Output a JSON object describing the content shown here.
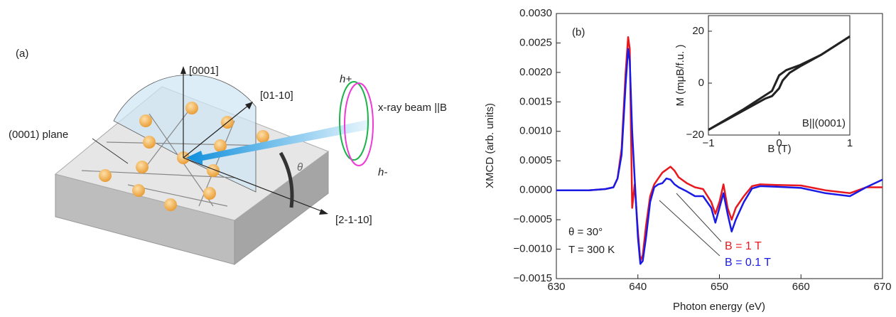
{
  "diagram": {
    "panel": "(a)",
    "axis_c": "[0001]",
    "axis_b": "[01-10]",
    "axis_a": "[2-1-10]",
    "plane": "(0001) plane",
    "beam": "x-ray beam ||B",
    "h_plus": "h+",
    "h_minus": "h-",
    "angle": "θ"
  },
  "chart_data": [
    {
      "type": "line",
      "panel": "(b)",
      "xlabel": "Photon energy (eV)",
      "ylabel": "XMCD (arb. units)",
      "annotations": [
        "θ = 30°",
        "T = 300 K"
      ],
      "x": [
        630,
        632,
        634,
        636,
        637,
        637.5,
        638,
        638.5,
        638.8,
        639,
        639.3,
        639.6,
        640,
        640.3,
        640.6,
        641,
        641.5,
        642,
        642.5,
        643,
        643.5,
        644,
        644.5,
        645,
        646,
        647,
        648,
        649,
        649.5,
        650,
        650.5,
        651,
        651.5,
        652,
        653,
        654,
        655,
        657,
        660,
        663,
        666,
        668,
        670
      ],
      "series": [
        {
          "name": "B = 1 T",
          "color": "#e8191e",
          "values": [
            0,
            0,
            0,
            2e-05,
            5e-05,
            0.0002,
            0.0007,
            0.002,
            0.0026,
            0.0024,
            -0.0003,
            0.0001,
            -0.0007,
            -0.0012,
            -0.0011,
            -0.0006,
            -0.0001,
            0.0001,
            0.0002,
            0.0003,
            0.00035,
            0.0004,
            0.00033,
            0.00022,
            0.00012,
            5e-05,
            2e-05,
            -0.0002,
            -0.0004,
            -0.0002,
            0.0001,
            -0.0003,
            -0.0005,
            -0.0003,
            -0.0001,
            7e-05,
            0.0001,
            9e-05,
            8e-05,
            0,
            -5e-05,
            5e-05,
            5e-05
          ]
        },
        {
          "name": "B = 0.1 T",
          "color": "#1a1ae6",
          "values": [
            0,
            0,
            0,
            2e-05,
            5e-05,
            0.0002,
            0.0006,
            0.0018,
            0.0024,
            0.0022,
            0.001,
            0.0002,
            -0.0008,
            -0.00125,
            -0.0012,
            -0.0008,
            -0.0002,
            5e-05,
            0.0001,
            0.00012,
            0.0002,
            0.00018,
            0.0001,
            5e-05,
            -2e-05,
            -0.0001,
            -0.0001,
            -0.0003,
            -0.00055,
            -0.0003,
            -5e-05,
            -0.0004,
            -0.0007,
            -0.0005,
            -0.0002,
            3e-05,
            7e-05,
            6e-05,
            4e-05,
            -5e-05,
            -0.0001,
            5e-05,
            0.00018
          ]
        }
      ],
      "xlim": [
        630,
        670
      ],
      "xticks": [
        630,
        640,
        650,
        660,
        670
      ],
      "ylim": [
        -0.0015,
        0.003
      ],
      "yticks": [
        {
          "value": 0.003,
          "label": "0.0030"
        },
        {
          "value": 0.0025,
          "label": "0.0025"
        },
        {
          "value": 0.002,
          "label": "0.0020"
        },
        {
          "value": 0.0015,
          "label": "0.0015"
        },
        {
          "value": 0.001,
          "label": "0.0010"
        },
        {
          "value": 0.0005,
          "label": "0.0005"
        },
        {
          "value": 0,
          "label": "0.0000"
        },
        {
          "value": -0.0005,
          "label": "−0.0005"
        },
        {
          "value": -0.001,
          "label": "−0.0010"
        },
        {
          "value": -0.0015,
          "label": "−0.0015"
        }
      ]
    },
    {
      "type": "line",
      "xlabel": "B (T)",
      "ylabel": "M (mμB/f.u. )",
      "annotation": "B||(0001)",
      "series": [
        {
          "color": "#222222",
          "x": [
            -1,
            -0.5,
            -0.1,
            0,
            0.1,
            0.3,
            0.6,
            1
          ],
          "values": [
            -18,
            -10,
            -3,
            3,
            5,
            7,
            11,
            18
          ]
        },
        {
          "color": "#222222",
          "x": [
            -1,
            -0.5,
            -0.2,
            -0.1,
            0,
            0.05,
            0.15,
            0.3,
            0.6,
            1
          ],
          "values": [
            -18,
            -10.5,
            -6,
            -5,
            -2,
            1,
            4,
            6.5,
            11,
            18
          ]
        }
      ],
      "xlim": [
        -1,
        1
      ],
      "xticks": [
        {
          "value": -1,
          "label": "−1"
        },
        0,
        1
      ],
      "ylim": [
        -20,
        26
      ],
      "yticks": [
        {
          "value": -20,
          "label": "−20"
        },
        0,
        20
      ]
    }
  ]
}
